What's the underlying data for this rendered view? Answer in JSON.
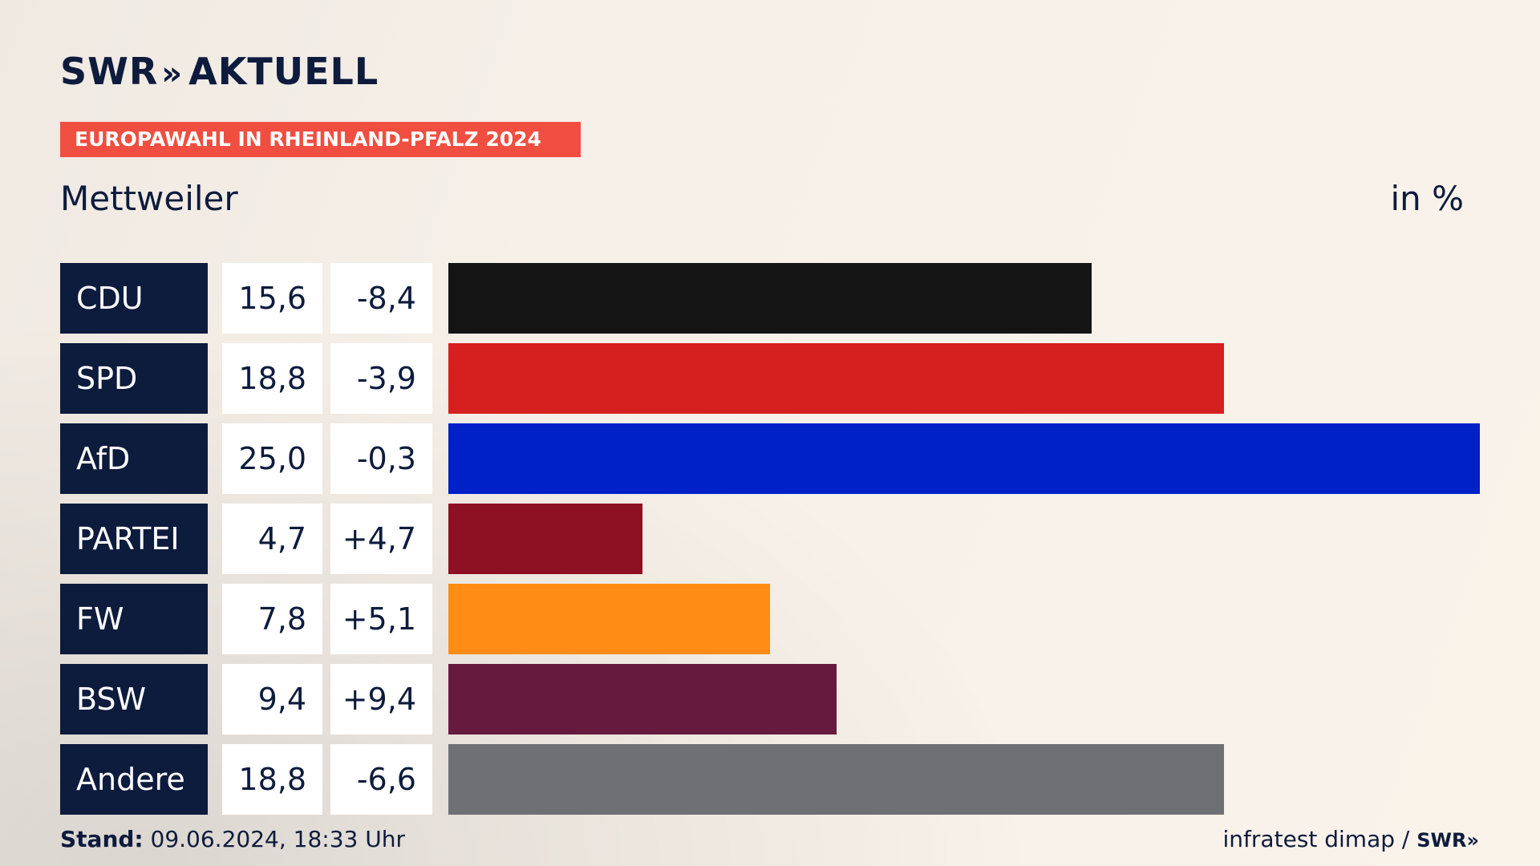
{
  "brand": {
    "logo": "SWR",
    "logo_chevrons": "»",
    "logo_suffix": "AKTUELL"
  },
  "banner": "EUROPAWAHL IN RHEINLAND-PFALZ 2024",
  "place": "Mettweiler",
  "unit": "in %",
  "footer": {
    "stand_label": "Stand:",
    "stand_value": " 09.06.2024, 18:33 Uhr",
    "source": "infratest dimap / ",
    "source_logo": "SWR»"
  },
  "chart_data": {
    "type": "bar",
    "orientation": "horizontal",
    "title": "Mettweiler",
    "unit": "in %",
    "categories": [
      "CDU",
      "SPD",
      "AfD",
      "PARTEI",
      "FW",
      "BSW",
      "Andere"
    ],
    "values": [
      15.6,
      18.8,
      25.0,
      4.7,
      7.8,
      9.4,
      18.8
    ],
    "value_labels": [
      "15,6",
      "18,8",
      "25,0",
      "4,7",
      "7,8",
      "9,4",
      "18,8"
    ],
    "diff_labels": [
      "-8,4",
      "-3,9",
      "-0,3",
      "+4,7",
      "+5,1",
      "+9,4",
      "-6,6"
    ],
    "diffs": [
      -8.4,
      -3.9,
      -0.3,
      4.7,
      5.1,
      9.4,
      -6.6
    ],
    "colors": [
      "#141414",
      "#d61f1f",
      "#0020c8",
      "#8e1023",
      "#ff8c14",
      "#651a3e",
      "#6f7073"
    ],
    "xlim": [
      0,
      25
    ]
  }
}
